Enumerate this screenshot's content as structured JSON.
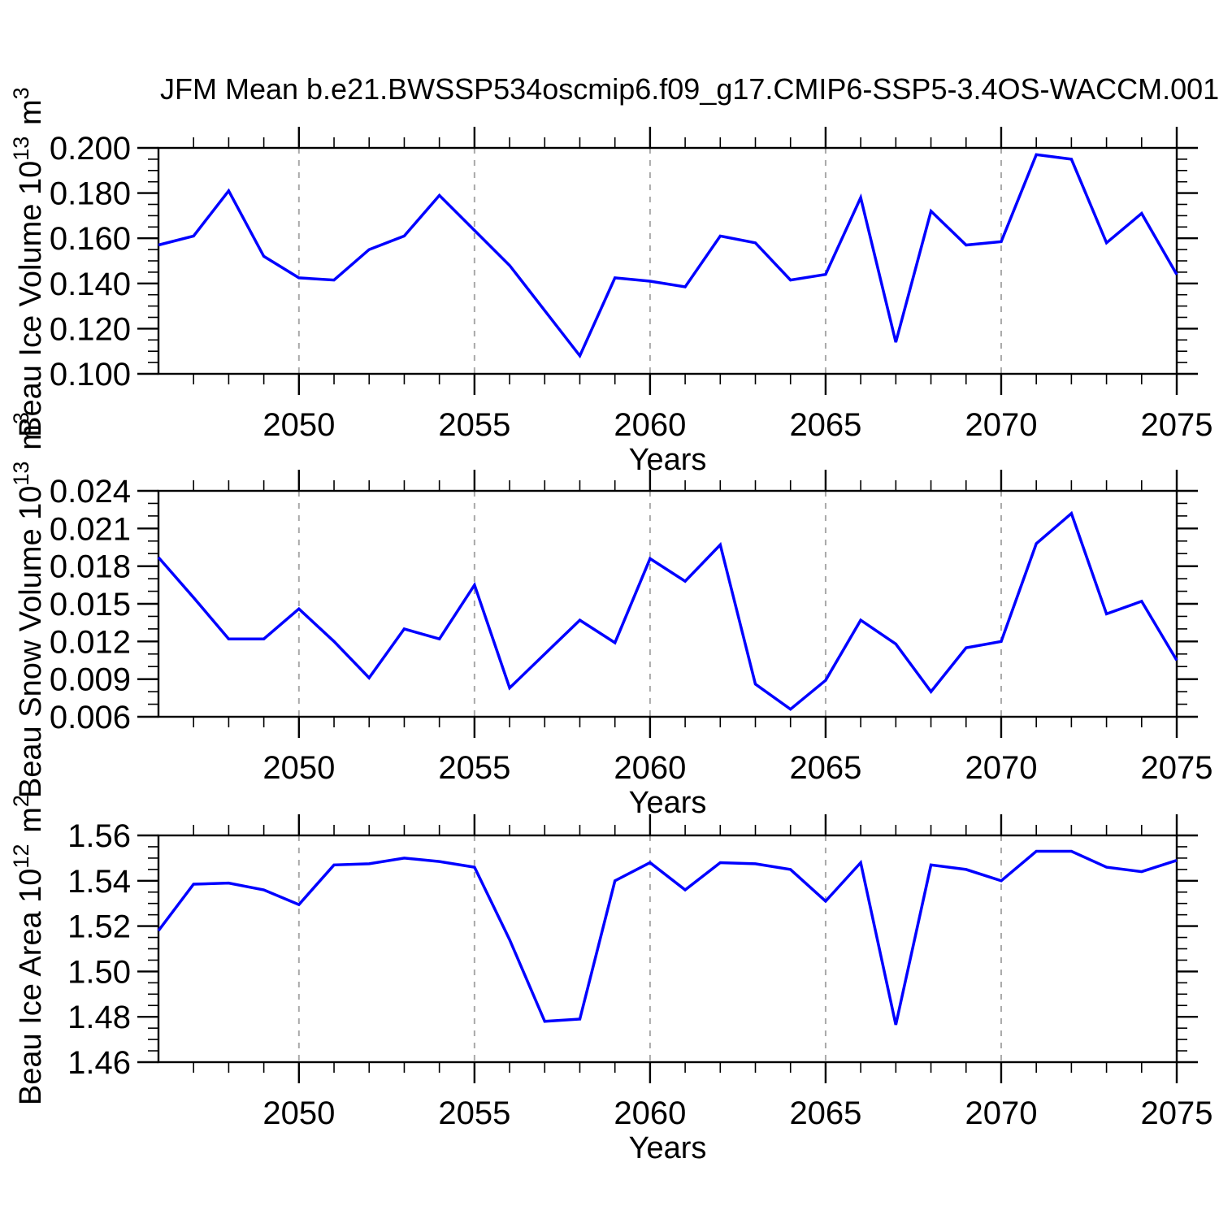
{
  "figure": {
    "title": "JFM Mean b.e21.BWSSP534oscmip6.f09_g17.CMIP6-SSP5-3.4OS-WACCM.001",
    "background": "#ffffff"
  },
  "colors": {
    "line": "#0000ff",
    "axis": "#000000",
    "gridline": "#a9a9a9",
    "text": "#000000"
  },
  "x_axis": {
    "label": "Years",
    "min": 2046,
    "max": 2075,
    "years": [
      2046,
      2047,
      2048,
      2049,
      2050,
      2051,
      2052,
      2053,
      2054,
      2055,
      2056,
      2057,
      2058,
      2059,
      2060,
      2061,
      2062,
      2063,
      2064,
      2065,
      2066,
      2067,
      2068,
      2069,
      2070,
      2071,
      2072,
      2073,
      2074,
      2075
    ],
    "major_ticks": [
      2050,
      2055,
      2060,
      2065,
      2070,
      2075
    ],
    "xtick_labels": [
      "2050",
      "2055",
      "2060",
      "2065",
      "2070",
      "2075"
    ],
    "gridlines": [
      2050,
      2055,
      2060,
      2065,
      2070
    ]
  },
  "chart_data": [
    {
      "type": "line",
      "name": "beau-ice-volume",
      "ylabel_plain": "Beau Ice Volume 10^13 m^3",
      "ylabel_segments": [
        {
          "text": "Beau Ice Volume 10"
        },
        {
          "sup": "13"
        },
        {
          "text": " m"
        },
        {
          "sup": "3"
        }
      ],
      "ylim": [
        0.1,
        0.2
      ],
      "yticks": [
        0.1,
        0.12,
        0.14,
        0.16,
        0.18,
        0.2
      ],
      "ytick_labels": [
        "0.100",
        "0.120",
        "0.140",
        "0.160",
        "0.180",
        "0.200"
      ],
      "y_minor_step": 0.005,
      "values": [
        0.157,
        0.161,
        0.181,
        0.152,
        0.1425,
        0.1415,
        0.155,
        0.161,
        0.179,
        0.1635,
        0.148,
        0.128,
        0.108,
        0.1425,
        0.141,
        0.1385,
        0.161,
        0.158,
        0.1415,
        0.144,
        0.178,
        0.114,
        0.172,
        0.157,
        0.1585,
        0.197,
        0.195,
        0.158,
        0.171,
        0.144
      ]
    },
    {
      "type": "line",
      "name": "beau-snow-volume",
      "ylabel_plain": "Beau Snow Volume 10^13 m^3",
      "ylabel_segments": [
        {
          "text": "Beau Snow Volume 10"
        },
        {
          "sup": "13"
        },
        {
          "text": " m"
        },
        {
          "sup": "3"
        }
      ],
      "ylim": [
        0.006,
        0.024
      ],
      "yticks": [
        0.006,
        0.009,
        0.012,
        0.015,
        0.018,
        0.021,
        0.024
      ],
      "ytick_labels": [
        "0.006",
        "0.009",
        "0.012",
        "0.015",
        "0.018",
        "0.021",
        "0.024"
      ],
      "y_minor_step": 0.001,
      "values": [
        0.0187,
        0.0155,
        0.0122,
        0.0122,
        0.0146,
        0.012,
        0.0091,
        0.013,
        0.0122,
        0.0165,
        0.0083,
        0.011,
        0.0137,
        0.0119,
        0.0186,
        0.0168,
        0.0197,
        0.0086,
        0.0066,
        0.0089,
        0.0137,
        0.0118,
        0.008,
        0.0115,
        0.012,
        0.0198,
        0.0222,
        0.0142,
        0.0152,
        0.0105
      ]
    },
    {
      "type": "line",
      "name": "beau-ice-area",
      "ylabel_plain": "Beau Ice Area 10^12 m^2",
      "ylabel_segments": [
        {
          "text": "Beau Ice Area 10"
        },
        {
          "sup": "12"
        },
        {
          "text": " m"
        },
        {
          "sup": "2"
        }
      ],
      "ylim": [
        1.46,
        1.56
      ],
      "yticks": [
        1.46,
        1.48,
        1.5,
        1.52,
        1.54,
        1.56
      ],
      "ytick_labels": [
        "1.46",
        "1.48",
        "1.50",
        "1.52",
        "1.54",
        "1.56"
      ],
      "y_minor_step": 0.005,
      "values": [
        1.518,
        1.5385,
        1.539,
        1.536,
        1.5295,
        1.547,
        1.5475,
        1.55,
        1.5485,
        1.546,
        1.514,
        1.478,
        1.479,
        1.54,
        1.548,
        1.536,
        1.548,
        1.5475,
        1.545,
        1.531,
        1.548,
        1.4765,
        1.547,
        1.545,
        1.54,
        1.553,
        1.553,
        1.546,
        1.544,
        1.549
      ]
    }
  ]
}
